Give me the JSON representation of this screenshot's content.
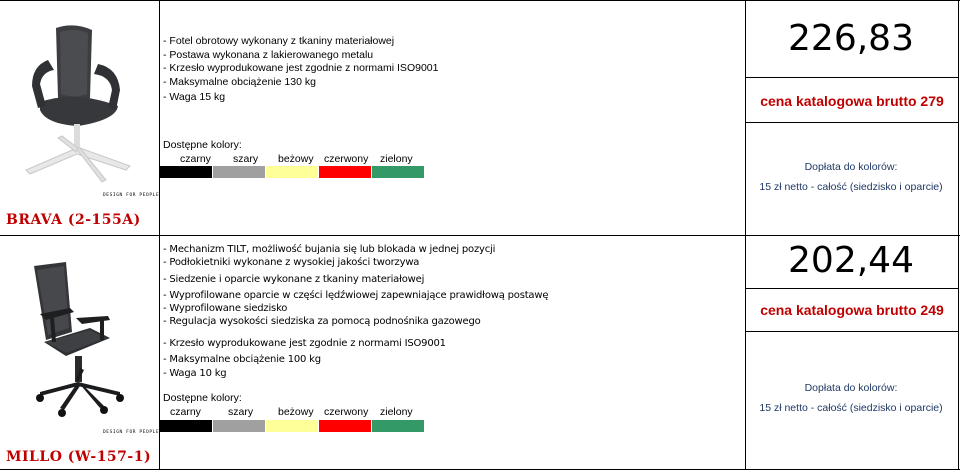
{
  "products": [
    {
      "name": "BRAVA (2-155A)",
      "image_caption": "DESIGN FOR PEOPLE",
      "features": [
        "- Fotel obrotowy wykonany z tkaniny materiałowej",
        "- Postawa wykonana z lakierowanego metalu",
        "- Krzesło wyprodukowane jest zgodnie z normami ISO9001",
        "- Maksymalne obciążenie 130 kg",
        "- Waga 15 kg"
      ],
      "colors_label": "Dostępne kolory:",
      "colors": [
        {
          "name": "czarny",
          "hex": "#000000"
        },
        {
          "name": "szary",
          "hex": "#a0a0a0"
        },
        {
          "name": "beżowy",
          "hex": "#ffff99"
        },
        {
          "name": "czerwony",
          "hex": "#ff0000"
        },
        {
          "name": "zielony",
          "hex": "#339966"
        }
      ],
      "price": "226,83",
      "catalog_price": "cena katalogowa brutto 279",
      "surcharge_label": "Dopłata do kolorów:",
      "surcharge_value": "15 zł netto - całość (siedzisko i oparcie)"
    },
    {
      "name": "MILLO (W-157-1)",
      "image_caption": "DESIGN FOR PEOPLE",
      "features": [
        "- Mechanizm TILT, możliwość bujania się lub blokada w jednej pozycji",
        "- Podłokietniki wykonane z wysokiej jakości tworzywa",
        "- Siedzenie i oparcie wykonane z tkaniny materiałowej",
        "- Wyprofilowane oparcie w części lędźwiowej zapewniające prawidłową postawę",
        "- Wyprofilowane siedzisko",
        "- Regulacja wysokości siedziska za pomocą podnośnika gazowego"
      ],
      "features_extra": [
        "- Krzesło wyprodukowane jest zgodnie z normami ISO9001",
        "- Maksymalne obciążenie 100 kg",
        "- Waga 10 kg"
      ],
      "colors_label": "Dostępne kolory:",
      "colors": [
        {
          "name": "czarny",
          "hex": "#000000"
        },
        {
          "name": "szary",
          "hex": "#a0a0a0"
        },
        {
          "name": "beżowy",
          "hex": "#ffff99"
        },
        {
          "name": "czerwony",
          "hex": "#ff0000"
        },
        {
          "name": "zielony",
          "hex": "#339966"
        }
      ],
      "price": "202,44",
      "catalog_price": "cena katalogowa brutto 249",
      "surcharge_label": "Dopłata do kolorów:",
      "surcharge_value": "15 zł netto - całość (siedzisko i oparcie)"
    }
  ]
}
